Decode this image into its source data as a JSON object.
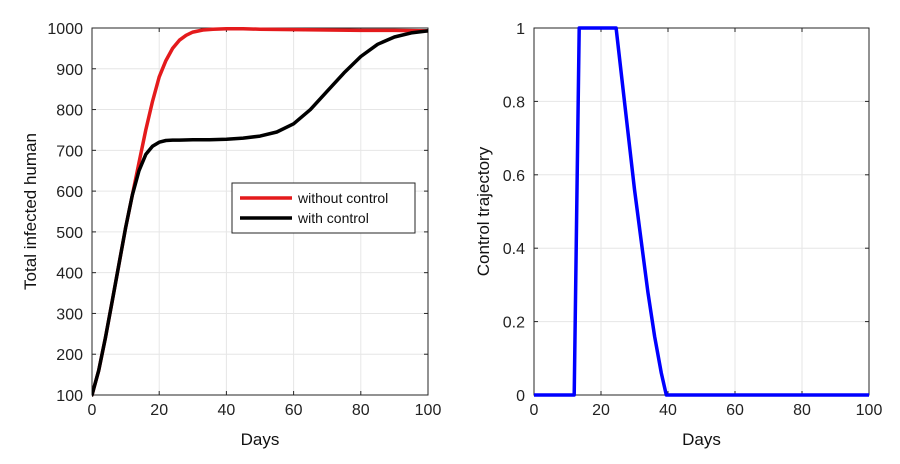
{
  "chart_data": [
    {
      "type": "line",
      "title": "",
      "xlabel": "Days",
      "ylabel": "Total infected human",
      "xlim": [
        0,
        100
      ],
      "ylim": [
        100,
        1000
      ],
      "xticks": [
        0,
        20,
        40,
        60,
        80,
        100
      ],
      "yticks": [
        100,
        200,
        300,
        400,
        500,
        600,
        700,
        800,
        900,
        1000
      ],
      "grid": true,
      "legend": "center-right",
      "series": [
        {
          "name": "without control",
          "color": "#e41a1c",
          "x": [
            0,
            2,
            4,
            6,
            8,
            10,
            12,
            14,
            16,
            18,
            20,
            22,
            24,
            26,
            28,
            30,
            33,
            36,
            40,
            45,
            50,
            60,
            70,
            80,
            90,
            100
          ],
          "y": [
            100,
            160,
            240,
            330,
            420,
            510,
            590,
            670,
            750,
            820,
            880,
            920,
            950,
            970,
            982,
            990,
            995,
            997,
            998,
            998,
            997,
            996,
            995,
            994,
            994,
            993
          ]
        },
        {
          "name": "with control",
          "color": "#000000",
          "x": [
            0,
            2,
            4,
            6,
            8,
            10,
            12,
            14,
            16,
            18,
            20,
            22,
            24,
            26,
            30,
            35,
            40,
            45,
            50,
            55,
            60,
            65,
            70,
            75,
            80,
            85,
            90,
            95,
            100
          ],
          "y": [
            100,
            160,
            240,
            330,
            420,
            510,
            590,
            650,
            690,
            710,
            720,
            724,
            725,
            725,
            726,
            726,
            727,
            730,
            735,
            745,
            765,
            800,
            845,
            890,
            930,
            960,
            978,
            988,
            993
          ]
        }
      ]
    },
    {
      "type": "line",
      "title": "",
      "xlabel": "Days",
      "ylabel": "Control trajectory",
      "xlim": [
        0,
        100
      ],
      "ylim": [
        0,
        1
      ],
      "xticks": [
        0,
        20,
        40,
        60,
        80,
        100
      ],
      "yticks": [
        0,
        0.2,
        0.4,
        0.6,
        0.8,
        1
      ],
      "grid": true,
      "series": [
        {
          "color": "#0000ff",
          "x": [
            0,
            12,
            13.5,
            24.5,
            26,
            28,
            30,
            32,
            34,
            36,
            38,
            39.5,
            100
          ],
          "y": [
            0,
            0,
            1,
            1,
            0.88,
            0.72,
            0.56,
            0.42,
            0.28,
            0.16,
            0.06,
            0,
            0
          ]
        }
      ]
    }
  ]
}
